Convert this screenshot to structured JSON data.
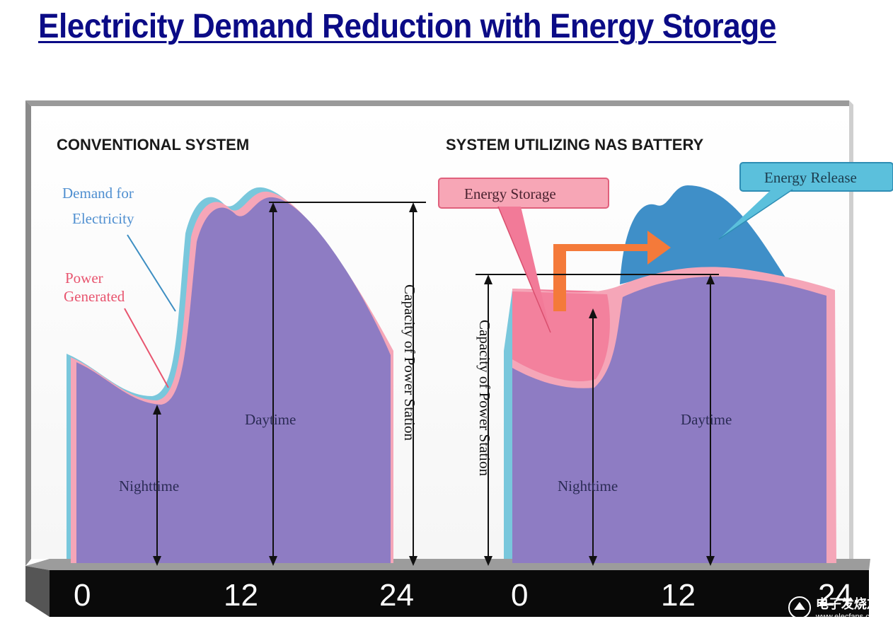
{
  "title": "Electricity Demand Reduction with Energy Storage",
  "left_panel": {
    "heading": "CONVENTIONAL SYSTEM",
    "demand_label_line1": "Demand for",
    "demand_label_line2": "Electricity",
    "power_label_line1": "Power",
    "power_label_line2": "Generated",
    "nighttime": "Nighttime",
    "daytime": "Daytime",
    "capacity_label": "Capacity of Power Station",
    "ticks": [
      "0",
      "12",
      "24"
    ]
  },
  "right_panel": {
    "heading": "SYSTEM UTILIZING NAS BATTERY",
    "storage_label": "Energy Storage",
    "release_label": "Energy Release",
    "nighttime": "Nighttime",
    "daytime": "Daytime",
    "capacity_label": "Capacity of Power Station",
    "ticks": [
      "0",
      "12",
      "24"
    ]
  },
  "watermark": {
    "text": "电子发烧友",
    "sub": "www.elecfans.com"
  },
  "colors": {
    "title": "#0b0b86",
    "purple_fill": "#8e7cc3",
    "pink": "#f5a6b8",
    "pink_strong": "#f27a98",
    "cyan": "#79c7dc",
    "blue_release": "#3f8fc8",
    "orange_arrow": "#f47a3a",
    "floor": "#0a0a0a"
  }
}
